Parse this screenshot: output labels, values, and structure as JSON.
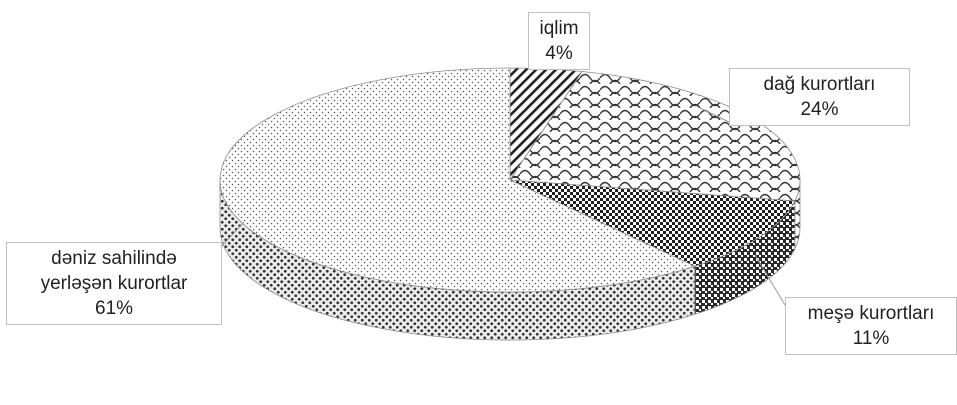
{
  "chart_data": {
    "type": "pie",
    "title": "",
    "slices": [
      {
        "label": "iqlim",
        "value": 4,
        "value_label": "4%",
        "pattern": "diagonal-hatch"
      },
      {
        "label": "dağ kurortları",
        "value": 24,
        "value_label": "24%",
        "pattern": "scales"
      },
      {
        "label": "meşə kurortları",
        "value": 11,
        "value_label": "11%",
        "pattern": "checker"
      },
      {
        "label": "dəniz sahilində yerləşən kurortlar",
        "value": 61,
        "value_label": "61%",
        "pattern": "dots"
      }
    ],
    "legend": "none",
    "style": "3d",
    "colors": {
      "ink": "#222222",
      "border": "#bfbfbf",
      "leader": "#9a9a9a"
    }
  },
  "labels": {
    "iqlim": {
      "name": "iqlim",
      "pct": "4%"
    },
    "dag": {
      "name": "dağ kurortları",
      "pct": "24%"
    },
    "mese": {
      "name": "meşə kurortları",
      "pct": "11%"
    },
    "deniz": {
      "line1": "dəniz sahilində",
      "line2": "yerləşən kurortlar",
      "pct": "61%"
    }
  }
}
